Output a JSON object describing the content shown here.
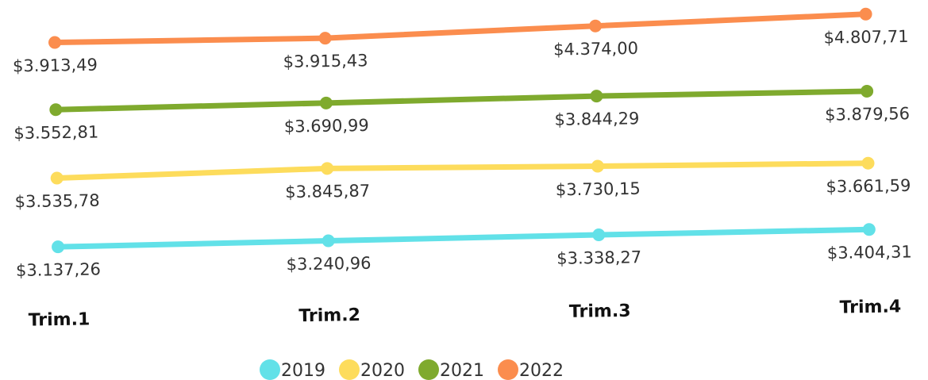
{
  "chart_data": {
    "type": "line",
    "categories": [
      "Trim.1",
      "Trim.2",
      "Trim.3",
      "Trim.4"
    ],
    "series": [
      {
        "name": "2019",
        "color": "#62e1e8",
        "values": [
          3137.26,
          3240.96,
          3338.27,
          3404.31
        ],
        "value_labels": [
          "$3.137,26",
          "$3.240,96",
          "$3.338,27",
          "$3.404,31"
        ]
      },
      {
        "name": "2020",
        "color": "#fddc5c",
        "values": [
          3535.78,
          3845.87,
          3730.15,
          3661.59
        ],
        "value_labels": [
          "$3.535,78",
          "$3.845,87",
          "$3.730,15",
          "$3.661,59"
        ]
      },
      {
        "name": "2021",
        "color": "#7faa2e",
        "values": [
          3552.81,
          3690.99,
          3844.29,
          3879.56
        ],
        "value_labels": [
          "$3.552,81",
          "$3.690,99",
          "$3.844,29",
          "$3.879,56"
        ]
      },
      {
        "name": "2022",
        "color": "#fb8d4e",
        "values": [
          3913.49,
          3915.43,
          4374.0,
          4807.71
        ],
        "value_labels": [
          "$3.913,49",
          "$3.915,43",
          "$4.374,00",
          "$4.807,71"
        ]
      }
    ],
    "legend": "bottom"
  }
}
